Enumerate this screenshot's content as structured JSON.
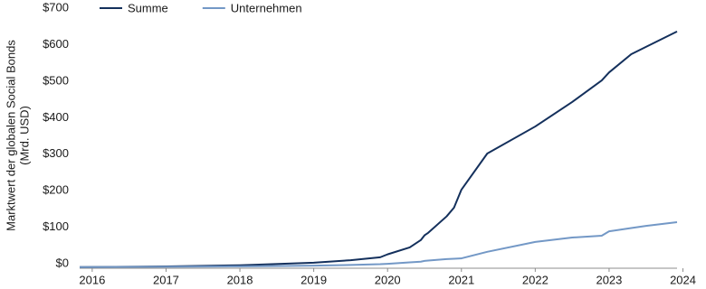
{
  "chart_data": {
    "type": "line",
    "ylabel": [
      "Marktwert der globalen Social Bonds",
      "(Mrd. USD)"
    ],
    "x": [
      2015.83,
      2017,
      2018,
      2019,
      2019.5,
      2019.9,
      2020.0,
      2020.3,
      2020.45,
      2020.5,
      2020.55,
      2020.8,
      2020.9,
      2021.0,
      2021.35,
      2022,
      2022.5,
      2022.9,
      2023.0,
      2023.3,
      2023.5,
      2023.92
    ],
    "series": [
      {
        "name": "Summe",
        "color": "#14305c",
        "values": [
          -9,
          -7,
          -4,
          3,
          10,
          18,
          26,
          45,
          65,
          78,
          85,
          130,
          154,
          203,
          302,
          376,
          443,
          502,
          524,
          574,
          594,
          636
        ]
      },
      {
        "name": "Unternehmen",
        "color": "#7398c6",
        "values": [
          -9,
          -8,
          -7,
          -5,
          -3,
          -1,
          0,
          4,
          6,
          8,
          9,
          13,
          14,
          15,
          33,
          60,
          72,
          77,
          89,
          98,
          104,
          114
        ]
      }
    ],
    "xlim": [
      2015.83,
      2023.92
    ],
    "xticks": [
      2016,
      2017,
      2018,
      2019,
      2020,
      2021,
      2022,
      2023,
      2024
    ],
    "ylim": [
      -12,
      700
    ],
    "yticks": [
      {
        "value": 0,
        "label": "$0"
      },
      {
        "value": 100,
        "label": "$100"
      },
      {
        "value": 200,
        "label": "$200"
      },
      {
        "value": 300,
        "label": "$300"
      },
      {
        "value": 400,
        "label": "$400"
      },
      {
        "value": 500,
        "label": "$500"
      },
      {
        "value": 600,
        "label": "$600"
      },
      {
        "value": 700,
        "label": "$700"
      }
    ],
    "grid": false
  }
}
